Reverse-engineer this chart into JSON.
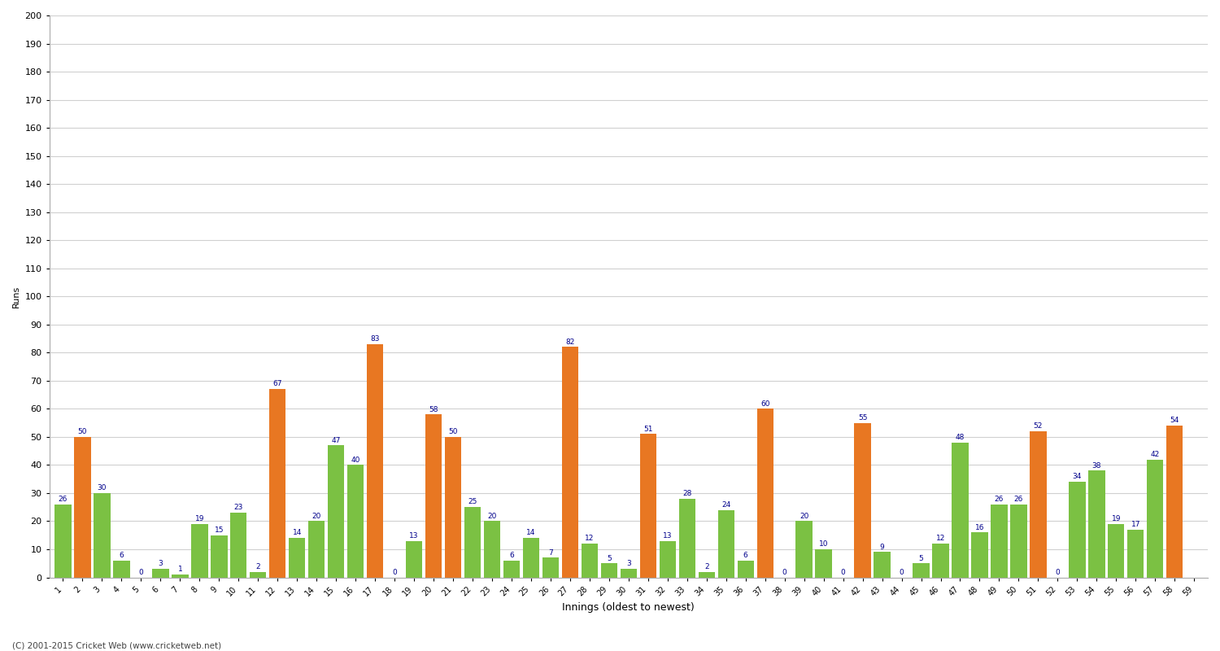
{
  "innings": [
    1,
    2,
    3,
    4,
    5,
    6,
    7,
    8,
    9,
    10,
    11,
    12,
    13,
    14,
    15,
    16,
    17,
    18,
    19,
    20,
    21,
    22,
    23,
    24,
    25,
    26,
    27,
    28,
    29,
    30,
    31,
    32,
    33,
    34,
    35,
    36,
    37,
    38,
    39,
    40,
    41,
    42,
    43,
    44,
    45,
    46,
    47,
    48,
    49,
    50,
    51,
    52,
    53,
    54,
    55,
    56,
    57,
    58,
    59
  ],
  "values": [
    26,
    50,
    30,
    6,
    0,
    3,
    1,
    19,
    15,
    23,
    2,
    67,
    14,
    20,
    47,
    40,
    83,
    0,
    13,
    58,
    50,
    25,
    20,
    6,
    14,
    7,
    82,
    12,
    5,
    3,
    51,
    13,
    28,
    2,
    24,
    6,
    60,
    0,
    20,
    10,
    0,
    55,
    9,
    0,
    5,
    12,
    48,
    16,
    26,
    26,
    52,
    0,
    34,
    38,
    19,
    17,
    42,
    54,
    0
  ],
  "colors": [
    "#7bc143",
    "#e87722",
    "#7bc143",
    "#7bc143",
    "#7bc143",
    "#7bc143",
    "#7bc143",
    "#7bc143",
    "#7bc143",
    "#7bc143",
    "#7bc143",
    "#e87722",
    "#7bc143",
    "#7bc143",
    "#7bc143",
    "#7bc143",
    "#e87722",
    "#7bc143",
    "#7bc143",
    "#e87722",
    "#e87722",
    "#7bc143",
    "#7bc143",
    "#7bc143",
    "#7bc143",
    "#7bc143",
    "#e87722",
    "#7bc143",
    "#7bc143",
    "#7bc143",
    "#e87722",
    "#7bc143",
    "#7bc143",
    "#7bc143",
    "#7bc143",
    "#7bc143",
    "#e87722",
    "#7bc143",
    "#7bc143",
    "#7bc143",
    "#7bc143",
    "#e87722",
    "#7bc143",
    "#7bc143",
    "#7bc143",
    "#7bc143",
    "#7bc143",
    "#7bc143",
    "#7bc143",
    "#7bc143",
    "#e87722",
    "#7bc143",
    "#7bc143",
    "#7bc143",
    "#7bc143",
    "#7bc143",
    "#7bc143",
    "#e87722",
    "#7bc143"
  ],
  "show_labels": [
    true,
    true,
    true,
    true,
    true,
    true,
    true,
    true,
    true,
    true,
    true,
    true,
    true,
    true,
    true,
    true,
    true,
    true,
    true,
    true,
    true,
    true,
    true,
    true,
    true,
    true,
    true,
    true,
    true,
    true,
    true,
    true,
    true,
    true,
    true,
    true,
    true,
    true,
    true,
    true,
    true,
    true,
    true,
    true,
    true,
    true,
    true,
    true,
    true,
    true,
    true,
    true,
    true,
    true,
    true,
    true,
    true,
    true,
    false
  ],
  "xlabel": "Innings (oldest to newest)",
  "ylabel": "Runs",
  "ylim": [
    0,
    200
  ],
  "yticks": [
    0,
    10,
    20,
    30,
    40,
    50,
    60,
    70,
    80,
    90,
    100,
    110,
    120,
    130,
    140,
    150,
    160,
    170,
    180,
    190,
    200
  ],
  "bg_color": "#ffffff",
  "grid_color": "#d0d0d0",
  "label_color": "#00008b",
  "footer": "(C) 2001-2015 Cricket Web (www.cricketweb.net)"
}
